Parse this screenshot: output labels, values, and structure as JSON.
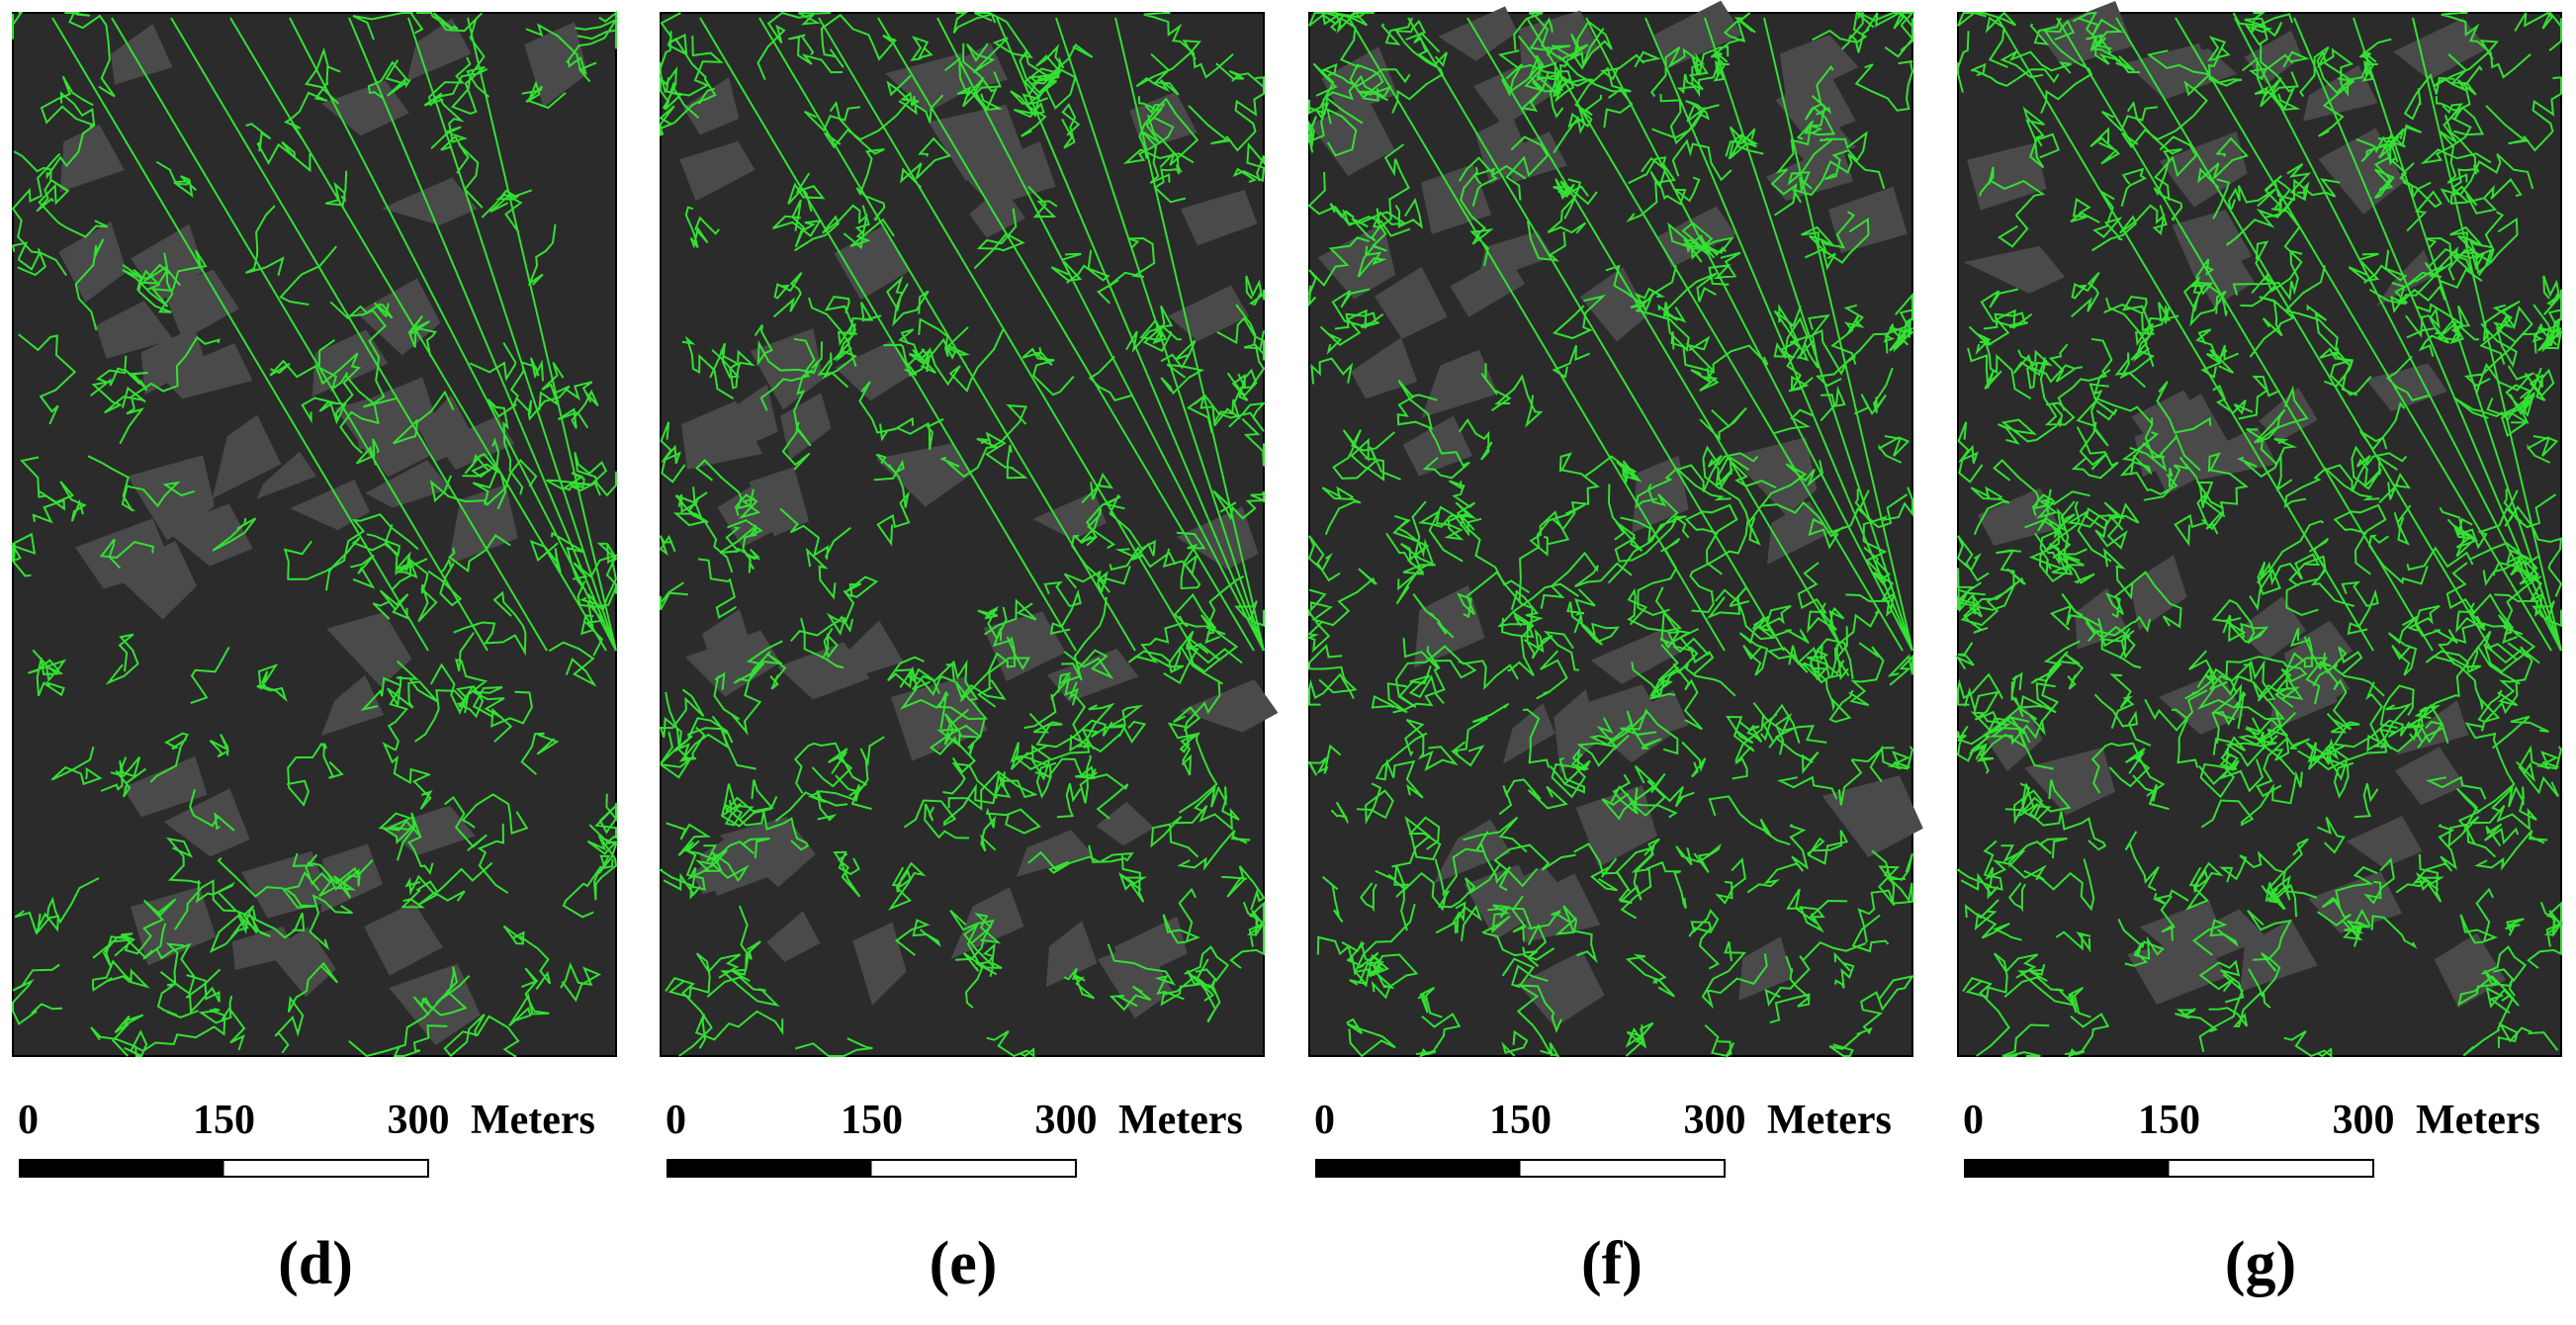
{
  "panels": [
    {
      "label": "(d)",
      "scale": {
        "ticks": [
          0,
          150,
          300
        ],
        "unit": "Meters"
      }
    },
    {
      "label": "(e)",
      "scale": {
        "ticks": [
          0,
          150,
          300
        ],
        "unit": "Meters"
      }
    },
    {
      "label": "(f)",
      "scale": {
        "ticks": [
          0,
          150,
          300
        ],
        "unit": "Meters"
      }
    },
    {
      "label": "(g)",
      "scale": {
        "ticks": [
          0,
          150,
          300
        ],
        "unit": "Meters"
      }
    }
  ]
}
